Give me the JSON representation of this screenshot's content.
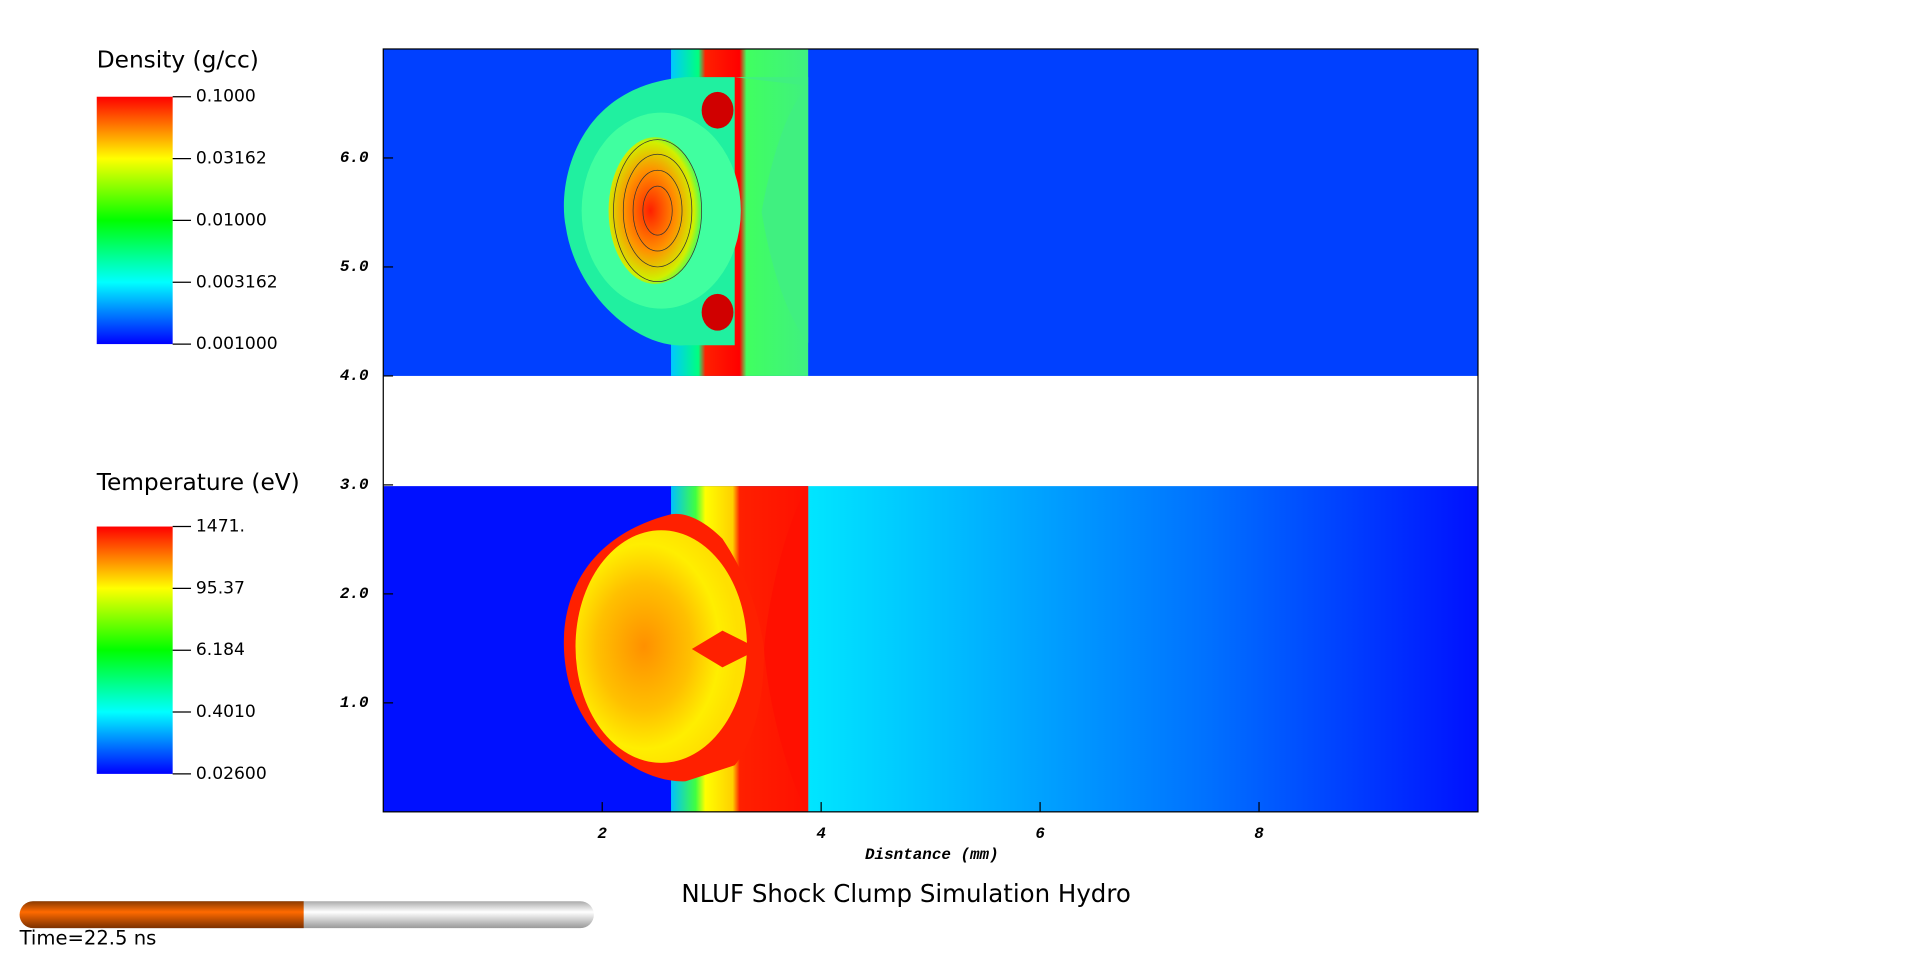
{
  "chart_data": {
    "type": "contour",
    "title": "NLUF Shock Clump Simulation Hydro",
    "x_label": "Disntance (mm)",
    "xlim": [
      0,
      10
    ],
    "xticks": [
      2,
      4,
      6,
      8
    ],
    "ylim": [
      0,
      7
    ],
    "yticks": [
      {
        "value": 1,
        "label": "1.0"
      },
      {
        "value": 2,
        "label": "2.0"
      },
      {
        "value": 3,
        "label": "3.0"
      },
      {
        "value": 4,
        "label": "4.0"
      },
      {
        "value": 5,
        "label": "5.0"
      },
      {
        "value": 6,
        "label": "6.0"
      }
    ],
    "colorbars": [
      {
        "title": "Density (g/cc)",
        "log": true,
        "ticks": [
          {
            "value": 0.1,
            "label": "0.1000"
          },
          {
            "value": 0.03162,
            "label": "0.03162"
          },
          {
            "value": 0.01,
            "label": "0.01000"
          },
          {
            "value": 0.003162,
            "label": "0.003162"
          },
          {
            "value": 0.001,
            "label": "0.001000"
          }
        ]
      },
      {
        "title": "Temperature (eV)",
        "log": true,
        "ticks": [
          {
            "value": 1471,
            "label": "1471."
          },
          {
            "value": 95.37,
            "label": "95.37"
          },
          {
            "value": 6.184,
            "label": "6.184"
          },
          {
            "value": 0.401,
            "label": "0.4010"
          },
          {
            "value": 0.026,
            "label": "0.02600"
          }
        ]
      }
    ],
    "time_label": "Time=22.5 ns"
  }
}
